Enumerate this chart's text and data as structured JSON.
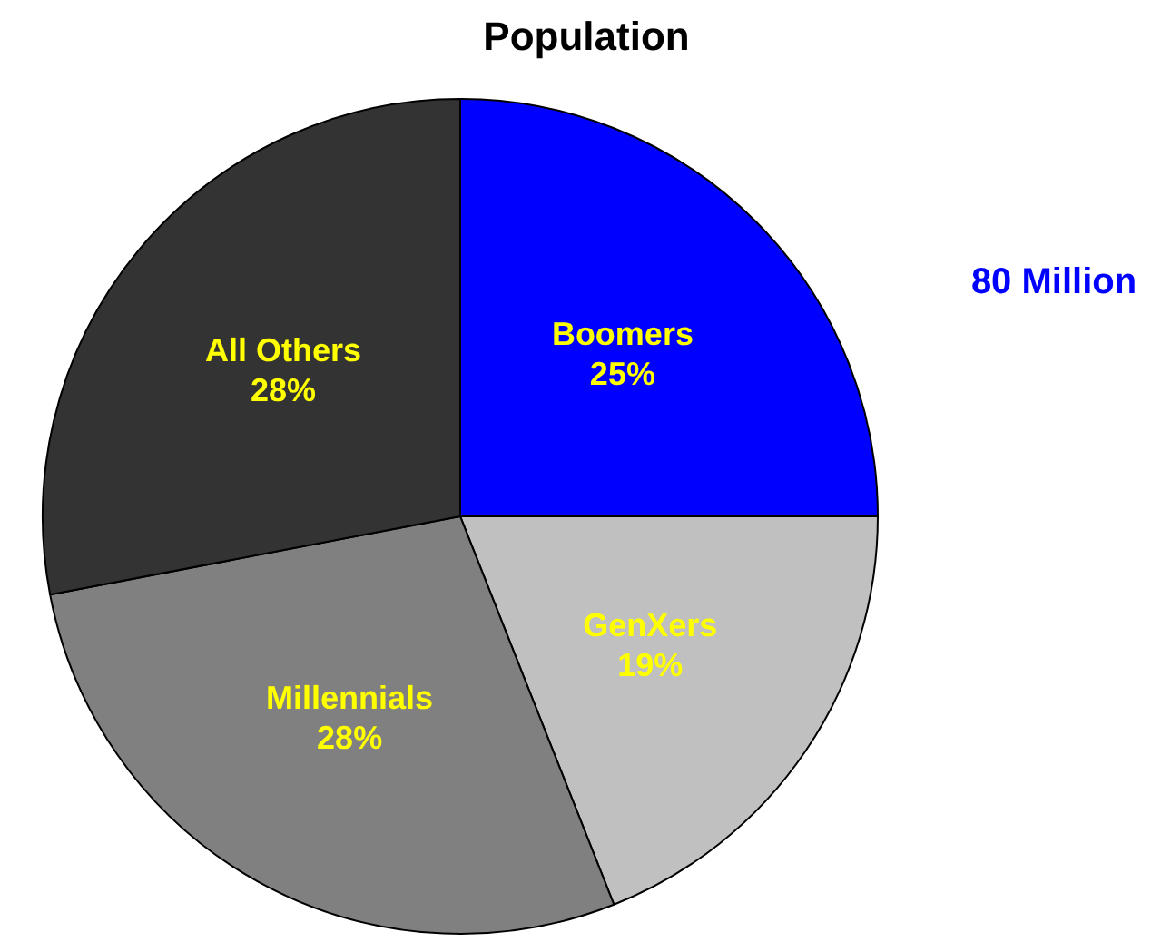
{
  "chart_data": {
    "type": "pie",
    "title": "Population",
    "categories": [
      "Boomers",
      "GenXers",
      "Millennials",
      "All Others"
    ],
    "values": [
      25,
      19,
      28,
      28
    ],
    "colors": [
      "#0000ff",
      "#c0c0c0",
      "#808080",
      "#333333"
    ],
    "value_labels": [
      "25%",
      "19%",
      "28%",
      "28%"
    ],
    "annotations": [
      "80 Million"
    ]
  }
}
